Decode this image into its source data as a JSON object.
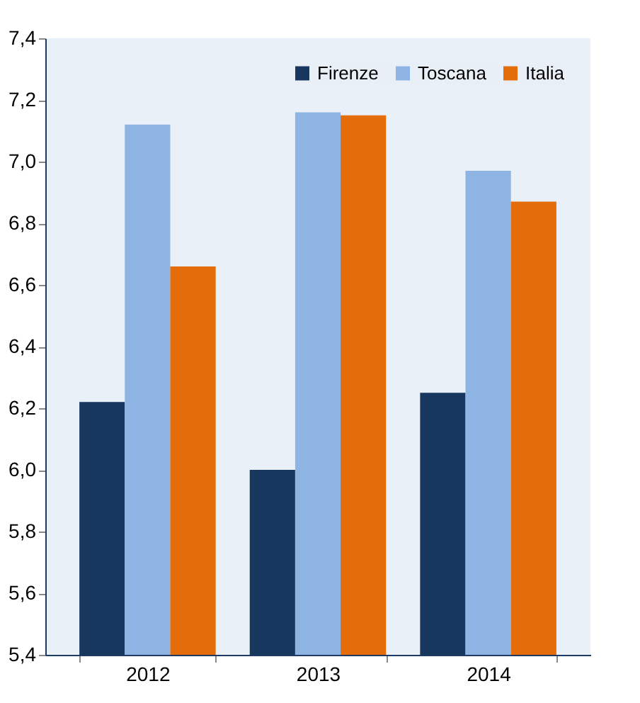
{
  "chart_data": {
    "type": "bar",
    "categories": [
      "2012",
      "2013",
      "2014"
    ],
    "series": [
      {
        "name": "Firenze",
        "color": "#17375e",
        "values": [
          6.22,
          6.0,
          6.25
        ]
      },
      {
        "name": "Toscana",
        "color": "#8eb4e3",
        "values": [
          7.12,
          7.16,
          6.97
        ]
      },
      {
        "name": "Italia",
        "color": "#e46c0a",
        "values": [
          6.66,
          7.15,
          6.87
        ]
      }
    ],
    "ylim": [
      5.4,
      7.4
    ],
    "yticks": [
      {
        "value": 5.4,
        "label": "5,4"
      },
      {
        "value": 5.6,
        "label": "5,6"
      },
      {
        "value": 5.8,
        "label": "5,8"
      },
      {
        "value": 6.0,
        "label": "6,0"
      },
      {
        "value": 6.2,
        "label": "6,2"
      },
      {
        "value": 6.4,
        "label": "6,4"
      },
      {
        "value": 6.6,
        "label": "6,6"
      },
      {
        "value": 6.8,
        "label": "6,8"
      },
      {
        "value": 7.0,
        "label": "7,0"
      },
      {
        "value": 7.2,
        "label": "7,2"
      },
      {
        "value": 7.4,
        "label": "7,4"
      }
    ],
    "grid": false,
    "legend": "top right"
  }
}
